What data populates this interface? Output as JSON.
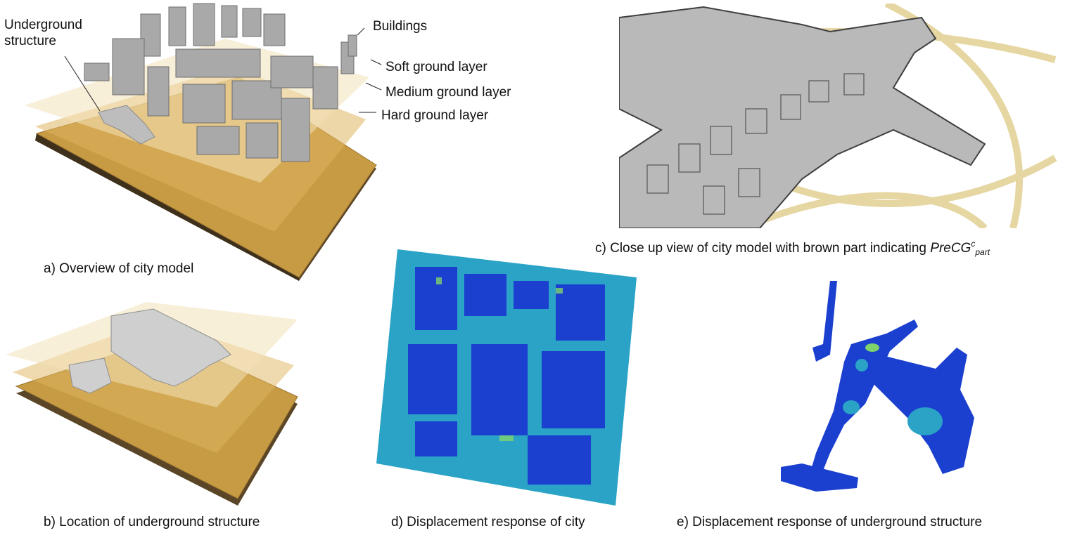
{
  "figure": {
    "panel_a": {
      "caption": "a) Overview of city model",
      "labels": {
        "underground_line1": "Underground",
        "underground_line2": "structure",
        "buildings": "Buildings",
        "soft": "Soft ground layer",
        "medium": "Medium ground layer",
        "hard": "Hard ground layer"
      }
    },
    "panel_b": {
      "caption": "b) Location of underground structure"
    },
    "panel_c": {
      "caption_prefix": "c) Close up view of city model with brown part indicating ",
      "caption_math_base": "PreCG",
      "caption_math_sup": "c",
      "caption_math_sub": "part"
    },
    "panel_d": {
      "caption": "d) Displacement response of city"
    },
    "panel_e": {
      "caption": "e) Displacement response of underground structure"
    }
  },
  "colors": {
    "ground_top": "#c79a44",
    "ground_side": "#5a4526",
    "soft_layer": "#f3e2b8",
    "building": "#a9a9a9",
    "structure": "#b9b9b9",
    "tube": "#e5d6a2",
    "disp_low": "#1b3fcf",
    "disp_mid": "#2aa3c7",
    "disp_high": "#7fd36b"
  }
}
